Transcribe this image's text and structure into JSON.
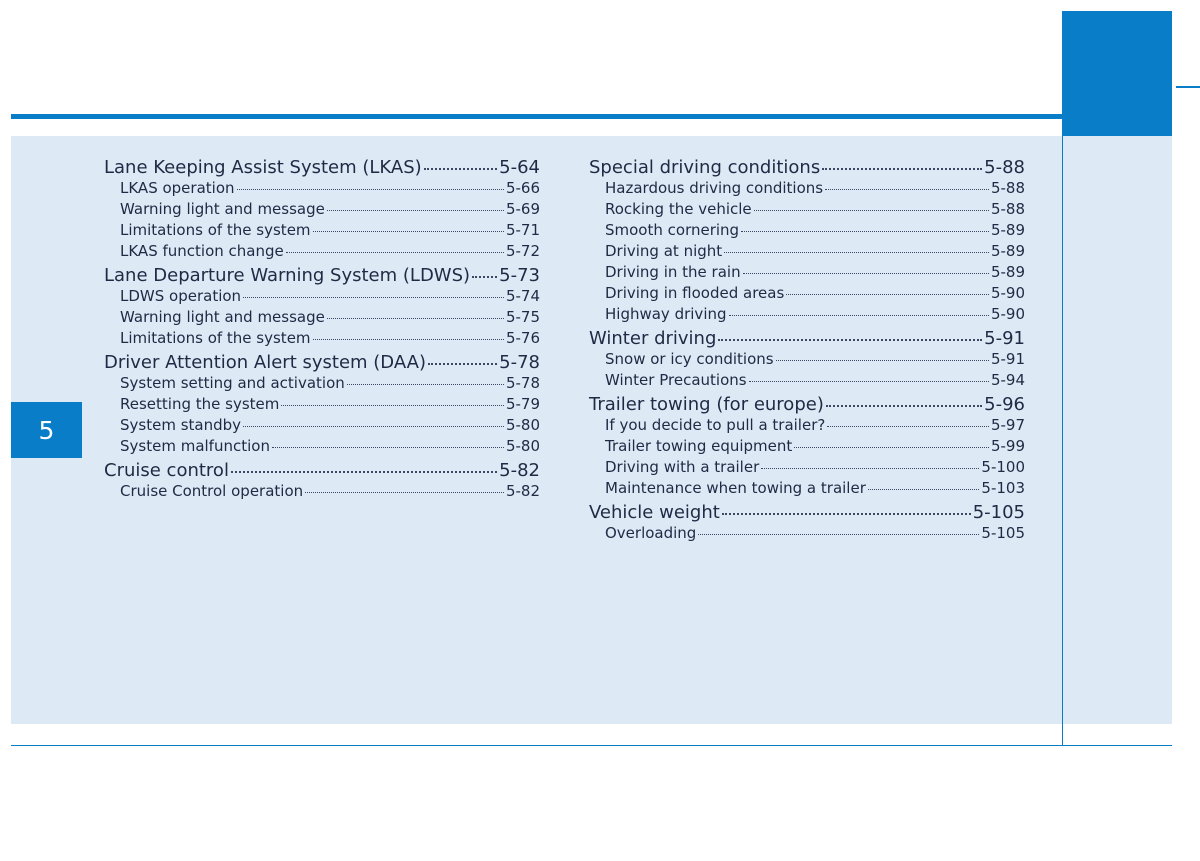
{
  "chapter": "5",
  "colors": {
    "accent": "#0a7dc8",
    "panel": "#dde9f5",
    "text": "#1f2a44"
  },
  "left_column": [
    {
      "label": "Lane Keeping Assist System (LKAS)",
      "page": "5-64",
      "level": "main"
    },
    {
      "label": "LKAS operation",
      "page": "5-66",
      "level": "sub"
    },
    {
      "label": "Warning light and message",
      "page": "5-69",
      "level": "sub"
    },
    {
      "label": "Limitations of the system",
      "page": "5-71",
      "level": "sub"
    },
    {
      "label": "LKAS function change",
      "page": "5-72",
      "level": "sub"
    },
    {
      "label": "Lane Departure Warning System (LDWS)",
      "page": "5-73",
      "level": "main"
    },
    {
      "label": "LDWS operation",
      "page": "5-74",
      "level": "sub"
    },
    {
      "label": "Warning light and message",
      "page": "5-75",
      "level": "sub"
    },
    {
      "label": "Limitations of the system",
      "page": "5-76",
      "level": "sub"
    },
    {
      "label": "Driver Attention Alert system (DAA)",
      "page": "5-78",
      "level": "main"
    },
    {
      "label": "System setting and activation",
      "page": "5-78",
      "level": "sub"
    },
    {
      "label": "Resetting the system",
      "page": "5-79",
      "level": "sub"
    },
    {
      "label": "System standby",
      "page": "5-80",
      "level": "sub"
    },
    {
      "label": "System malfunction",
      "page": "5-80",
      "level": "sub"
    },
    {
      "label": "Cruise control",
      "page": "5-82",
      "level": "main"
    },
    {
      "label": "Cruise Control operation",
      "page": "5-82",
      "level": "sub"
    }
  ],
  "right_column": [
    {
      "label": "Special driving conditions",
      "page": "5-88",
      "level": "main"
    },
    {
      "label": "Hazardous driving conditions",
      "page": "5-88",
      "level": "sub"
    },
    {
      "label": "Rocking the vehicle",
      "page": "5-88",
      "level": "sub"
    },
    {
      "label": "Smooth cornering",
      "page": "5-89",
      "level": "sub"
    },
    {
      "label": "Driving at night",
      "page": "5-89",
      "level": "sub"
    },
    {
      "label": "Driving in the rain",
      "page": "5-89",
      "level": "sub"
    },
    {
      "label": "Driving in flooded areas",
      "page": "5-90",
      "level": "sub"
    },
    {
      "label": "Highway driving",
      "page": "5-90",
      "level": "sub"
    },
    {
      "label": "Winter driving",
      "page": "5-91",
      "level": "main"
    },
    {
      "label": "Snow or icy conditions",
      "page": "5-91",
      "level": "sub"
    },
    {
      "label": "Winter Precautions",
      "page": "5-94",
      "level": "sub"
    },
    {
      "label": "Trailer towing (for europe)",
      "page": "5-96",
      "level": "main"
    },
    {
      "label": "If you decide to pull a trailer?",
      "page": "5-97",
      "level": "sub"
    },
    {
      "label": "Trailer towing equipment",
      "page": "5-99",
      "level": "sub"
    },
    {
      "label": "Driving with a trailer",
      "page": "5-100",
      "level": "sub"
    },
    {
      "label": "Maintenance when towing a trailer",
      "page": "5-103",
      "level": "sub"
    },
    {
      "label": "Vehicle weight",
      "page": "5-105",
      "level": "main"
    },
    {
      "label": "Overloading",
      "page": "5-105",
      "level": "sub"
    }
  ]
}
